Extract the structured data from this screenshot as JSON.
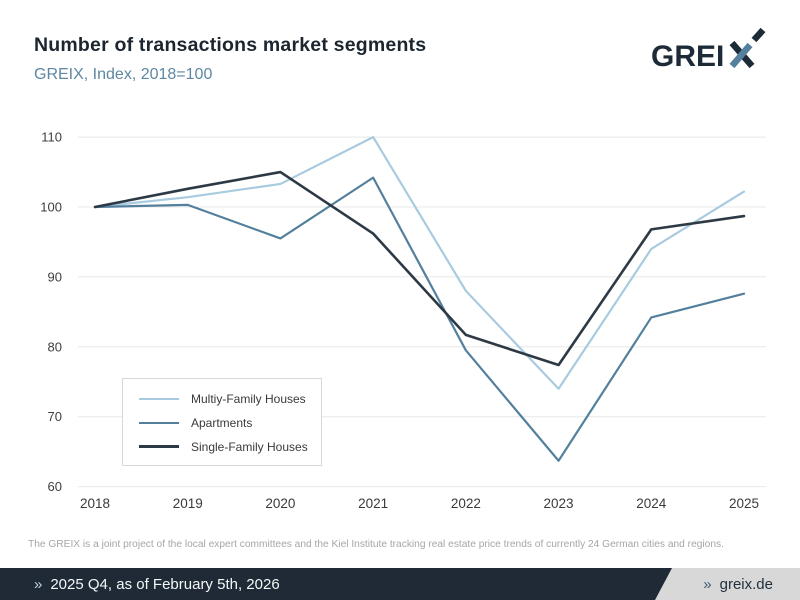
{
  "colors": {
    "dark": "#2d3a45",
    "steel": "#54809e",
    "light_blue": "#a9cbdf",
    "title": "#1b2630",
    "subtitle": "#5d87a3",
    "grid": "#e8e8e8",
    "bar_navy": "#1f2a36",
    "bar_gray": "#d8d8d8"
  },
  "logo": {
    "prefix": "GREI",
    "accent_letter": "X"
  },
  "chart_data": {
    "type": "line",
    "title": "Number of transactions market segments",
    "subtitle": "GREIX, Index, 2018=100",
    "x": [
      2018,
      2019,
      2020,
      2021,
      2022,
      2023,
      2024,
      2025
    ],
    "series": [
      {
        "name": "Multiy-Family Houses",
        "color": "#a9cbdf",
        "values": [
          100,
          101.4,
          103.3,
          110,
          88,
          74,
          94,
          102.2
        ]
      },
      {
        "name": "Apartments",
        "color": "#54809e",
        "values": [
          100,
          100.3,
          95.5,
          104.2,
          79.5,
          63.7,
          84.2,
          87.6
        ]
      },
      {
        "name": "Single-Family Houses",
        "color": "#2d3a45",
        "values": [
          100,
          102.6,
          105,
          96.2,
          81.7,
          77.4,
          96.8,
          98.7
        ]
      }
    ],
    "ylim": [
      60,
      110
    ],
    "yticks": [
      60,
      70,
      80,
      90,
      100,
      110
    ],
    "grid": true,
    "legend_position": "inside-bottom-left"
  },
  "footer": {
    "disclaimer": "The GREIX is a joint project of the local expert committees and the Kiel Institute tracking real estate price trends of currently 24 German cities and regions."
  },
  "bottom_bar": {
    "left_chevron": "»",
    "left_text": "2025 Q4, as of February 5th, 2026",
    "right_chevron": "»",
    "right_text": "greix.de"
  }
}
